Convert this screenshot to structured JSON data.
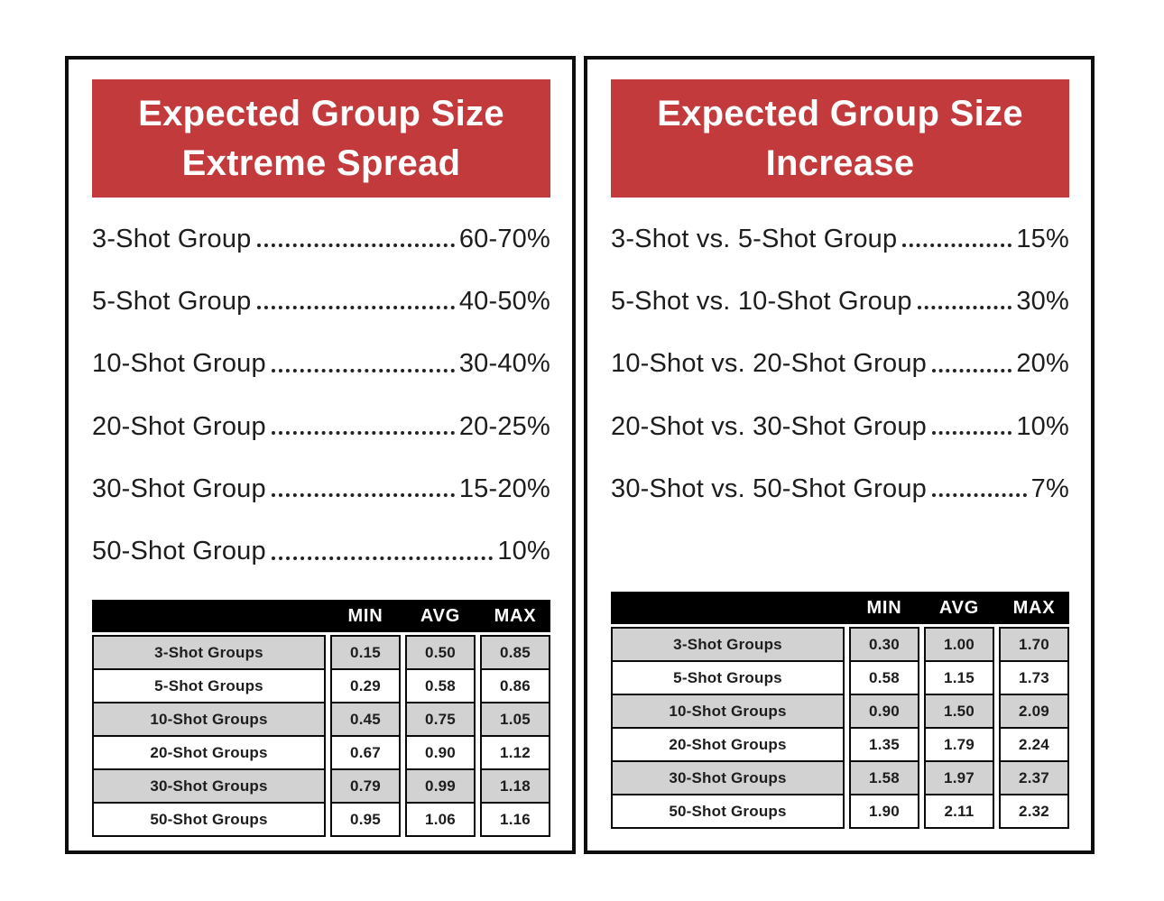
{
  "panels": [
    {
      "title_lines": [
        "Expected Group Size",
        "Extreme Spread"
      ],
      "list": [
        {
          "label": "3-Shot Group",
          "value": "60-70%"
        },
        {
          "label": "5-Shot Group",
          "value": "40-50%"
        },
        {
          "label": "10-Shot Group",
          "value": "30-40%"
        },
        {
          "label": "20-Shot Group",
          "value": "20-25%"
        },
        {
          "label": "30-Shot Group",
          "value": "15-20%"
        },
        {
          "label": "50-Shot Group",
          "value": "10%"
        }
      ],
      "table": {
        "col_headers": [
          "MIN",
          "AVG",
          "MAX"
        ],
        "rows": [
          {
            "label": "3-Shot Groups",
            "min": "0.15",
            "avg": "0.50",
            "max": "0.85"
          },
          {
            "label": "5-Shot Groups",
            "min": "0.29",
            "avg": "0.58",
            "max": "0.86"
          },
          {
            "label": "10-Shot Groups",
            "min": "0.45",
            "avg": "0.75",
            "max": "1.05"
          },
          {
            "label": "20-Shot Groups",
            "min": "0.67",
            "avg": "0.90",
            "max": "1.12"
          },
          {
            "label": "30-Shot Groups",
            "min": "0.79",
            "avg": "0.99",
            "max": "1.18"
          },
          {
            "label": "50-Shot Groups",
            "min": "0.95",
            "avg": "1.06",
            "max": "1.16"
          }
        ]
      }
    },
    {
      "title_lines": [
        "Expected Group Size",
        "Increase"
      ],
      "list": [
        {
          "label": "3-Shot vs. 5-Shot Group",
          "value": "15%"
        },
        {
          "label": "5-Shot vs. 10-Shot Group",
          "value": "30%"
        },
        {
          "label": "10-Shot vs. 20-Shot Group",
          "value": "20%"
        },
        {
          "label": "20-Shot vs. 30-Shot Group",
          "value": "10%"
        },
        {
          "label": "30-Shot vs. 50-Shot Group",
          "value": "7%"
        }
      ],
      "table": {
        "col_headers": [
          "MIN",
          "AVG",
          "MAX"
        ],
        "rows": [
          {
            "label": "3-Shot Groups",
            "min": "0.30",
            "avg": "1.00",
            "max": "1.70"
          },
          {
            "label": "5-Shot Groups",
            "min": "0.58",
            "avg": "1.15",
            "max": "1.73"
          },
          {
            "label": "10-Shot Groups",
            "min": "0.90",
            "avg": "1.50",
            "max": "2.09"
          },
          {
            "label": "20-Shot Groups",
            "min": "1.35",
            "avg": "1.79",
            "max": "2.24"
          },
          {
            "label": "30-Shot Groups",
            "min": "1.58",
            "avg": "1.97",
            "max": "2.37"
          },
          {
            "label": "50-Shot Groups",
            "min": "1.90",
            "avg": "2.11",
            "max": "2.32"
          }
        ]
      }
    }
  ],
  "colors": {
    "accent_red": "#c23a3c",
    "table_alt_row": "#d2d2d2",
    "table_header_bg": "#000000",
    "text": "#1d1d1f",
    "panel_border": "#0d0d0d"
  },
  "chart_data": [
    {
      "type": "table",
      "title": "Expected Group Size Extreme Spread",
      "annotations": [
        [
          "3-Shot Group",
          "60-70%"
        ],
        [
          "5-Shot Group",
          "40-50%"
        ],
        [
          "10-Shot Group",
          "30-40%"
        ],
        [
          "20-Shot Group",
          "20-25%"
        ],
        [
          "30-Shot Group",
          "15-20%"
        ],
        [
          "50-Shot Group",
          "10%"
        ]
      ],
      "columns": [
        "",
        "MIN",
        "AVG",
        "MAX"
      ],
      "rows": [
        [
          "3-Shot Groups",
          0.15,
          0.5,
          0.85
        ],
        [
          "5-Shot Groups",
          0.29,
          0.58,
          0.86
        ],
        [
          "10-Shot Groups",
          0.45,
          0.75,
          1.05
        ],
        [
          "20-Shot Groups",
          0.67,
          0.9,
          1.12
        ],
        [
          "30-Shot Groups",
          0.79,
          0.99,
          1.18
        ],
        [
          "50-Shot Groups",
          0.95,
          1.06,
          1.16
        ]
      ]
    },
    {
      "type": "table",
      "title": "Expected Group Size Increase",
      "annotations": [
        [
          "3-Shot vs. 5-Shot Group",
          "15%"
        ],
        [
          "5-Shot vs. 10-Shot Group",
          "30%"
        ],
        [
          "10-Shot vs. 20-Shot Group",
          "20%"
        ],
        [
          "20-Shot vs. 30-Shot Group",
          "10%"
        ],
        [
          "30-Shot vs. 50-Shot Group",
          "7%"
        ]
      ],
      "columns": [
        "",
        "MIN",
        "AVG",
        "MAX"
      ],
      "rows": [
        [
          "3-Shot Groups",
          0.3,
          1.0,
          1.7
        ],
        [
          "5-Shot Groups",
          0.58,
          1.15,
          1.73
        ],
        [
          "10-Shot Groups",
          0.9,
          1.5,
          2.09
        ],
        [
          "20-Shot Groups",
          1.35,
          1.79,
          2.24
        ],
        [
          "30-Shot Groups",
          1.58,
          1.97,
          2.37
        ],
        [
          "50-Shot Groups",
          1.9,
          2.11,
          2.32
        ]
      ]
    }
  ]
}
